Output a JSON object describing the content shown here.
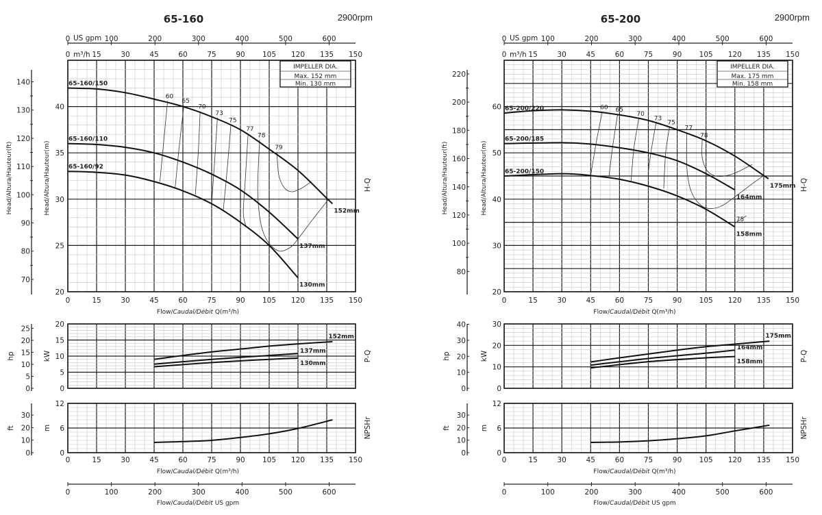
{
  "chart_data": [
    {
      "type": "line",
      "title": "65-160",
      "speed": "2900rpm",
      "impeller_box": {
        "title": "IMPELLER DIA.",
        "max": "Max.  152 mm",
        "min": "Min.   130 mm"
      },
      "top_axes": {
        "gpm_unit": "US gpm",
        "q_unit": "m³/h",
        "gpm_ticks": [
          0,
          100,
          200,
          300,
          400,
          500,
          600
        ],
        "q_ticks": [
          0,
          15,
          30,
          45,
          60,
          75,
          90,
          105,
          120,
          135,
          150
        ]
      },
      "xlabel": {
        "a": "Flow/",
        "b": "Caudal/Débit",
        "c": " Q(m³/h)"
      },
      "xlim": [
        0,
        150
      ],
      "x_ticks": [
        0,
        15,
        30,
        45,
        60,
        75,
        90,
        105,
        120,
        135,
        150
      ],
      "hq": {
        "label": "H-Q",
        "ylabel_m": "Head/Altura/Hauteur(m)",
        "ylabel_ft": "Head/Altura/Hauteur(ft)",
        "ylim": [
          20,
          45
        ],
        "m_ticks": [
          20,
          25,
          30,
          35,
          40
        ],
        "ft_ticks": [
          70,
          80,
          90,
          100,
          110,
          120,
          130,
          140
        ],
        "series": [
          {
            "name": "65-160/150",
            "end_label": "152mm",
            "points": [
              [
                0,
                42
              ],
              [
                15,
                41.9
              ],
              [
                30,
                41.5
              ],
              [
                45,
                40.8
              ],
              [
                60,
                40
              ],
              [
                75,
                38.9
              ],
              [
                90,
                37.5
              ],
              [
                105,
                35.4
              ],
              [
                120,
                33.1
              ],
              [
                135,
                30.1
              ],
              [
                138,
                29.5
              ]
            ]
          },
          {
            "name": "65-160/110",
            "end_label": "137mm",
            "points": [
              [
                0,
                36
              ],
              [
                15,
                35.9
              ],
              [
                30,
                35.6
              ],
              [
                45,
                35
              ],
              [
                60,
                34
              ],
              [
                75,
                32.7
              ],
              [
                90,
                31
              ],
              [
                105,
                28.6
              ],
              [
                120,
                25.7
              ]
            ]
          },
          {
            "name": "65-160/92",
            "end_label": "130mm",
            "points": [
              [
                0,
                33
              ],
              [
                15,
                32.9
              ],
              [
                30,
                32.6
              ],
              [
                45,
                31.9
              ],
              [
                60,
                30.9
              ],
              [
                75,
                29.5
              ],
              [
                90,
                27.5
              ],
              [
                105,
                25
              ],
              [
                120,
                21.5
              ]
            ]
          }
        ],
        "efficiency": [
          {
            "label": "60",
            "points": [
              [
                52,
                40.6
              ],
              [
                50,
                36.2
              ],
              [
                48,
                31.9
              ]
            ]
          },
          {
            "label": "65",
            "points": [
              [
                60.5,
                40.1
              ],
              [
                58,
                35.5
              ],
              [
                56,
                31.3
              ]
            ]
          },
          {
            "label": "70",
            "points": [
              [
                69,
                39.5
              ],
              [
                68,
                35
              ],
              [
                66.5,
                30.5
              ]
            ]
          },
          {
            "label": "73",
            "points": [
              [
                78,
                38.8
              ],
              [
                76.5,
                34
              ],
              [
                75,
                29.5
              ]
            ]
          },
          {
            "label": "75",
            "points": [
              [
                85,
                38
              ],
              [
                83,
                33
              ],
              [
                81,
                28.7
              ]
            ]
          },
          {
            "label": "77",
            "points": [
              [
                94,
                37.1
              ],
              [
                92.5,
                32
              ],
              [
                91.5,
                28.5
              ],
              [
                93,
                27
              ]
            ]
          },
          {
            "label": "78",
            "points": [
              [
                100,
                36.4
              ],
              [
                99,
                31
              ],
              [
                100.5,
                27.5
              ],
              [
                104,
                25.5
              ],
              [
                110,
                24.4
              ],
              [
                116,
                24.8
              ],
              [
                120,
                25.7
              ],
              [
                128,
                27.9
              ],
              [
                136,
                30
              ]
            ]
          },
          {
            "label": "79",
            "points": [
              [
                109,
                35.1
              ],
              [
                110,
                32.6
              ],
              [
                113,
                31.2
              ],
              [
                117,
                30.8
              ],
              [
                122,
                31.2
              ],
              [
                127,
                31.9
              ]
            ]
          }
        ]
      },
      "pq": {
        "label": "P-Q",
        "ylabel_kw": "kW",
        "ylabel_hp": "hp",
        "ylim": [
          0,
          20
        ],
        "kw_ticks": [
          0,
          5,
          10,
          15,
          20
        ],
        "hp_ticks": [
          0,
          5,
          10,
          15,
          20,
          25
        ],
        "series": [
          {
            "end_label": "152mm",
            "points": [
              [
                45,
                9
              ],
              [
                60,
                10.2
              ],
              [
                75,
                11.3
              ],
              [
                90,
                12.2
              ],
              [
                105,
                13.1
              ],
              [
                120,
                13.8
              ],
              [
                138,
                14.5
              ]
            ]
          },
          {
            "end_label": "137mm",
            "points": [
              [
                45,
                7.5
              ],
              [
                75,
                9
              ],
              [
                105,
                10.2
              ],
              [
                120,
                10.8
              ]
            ]
          },
          {
            "end_label": "130mm",
            "points": [
              [
                45,
                6.7
              ],
              [
                75,
                8
              ],
              [
                105,
                9
              ],
              [
                120,
                9.4
              ]
            ]
          }
        ]
      },
      "npsh": {
        "label": "NPSHr",
        "ylabel_m": "m",
        "ylabel_ft": "ft",
        "ylim": [
          0,
          12
        ],
        "m_ticks": [
          0,
          6,
          12
        ],
        "ft_ticks": [
          0,
          10,
          20,
          30
        ],
        "points": [
          [
            45,
            2.5
          ],
          [
            60,
            2.7
          ],
          [
            75,
            3
          ],
          [
            90,
            3.7
          ],
          [
            105,
            4.6
          ],
          [
            120,
            5.9
          ],
          [
            138,
            8
          ]
        ]
      },
      "bottom_axis": {
        "ticks": [
          0,
          100,
          200,
          300,
          400,
          500,
          600
        ],
        "label_a": "Flow/",
        "label_b": "Caudal/Débit",
        "label_c": "   US gpm"
      }
    },
    {
      "type": "line",
      "title": "65-200",
      "speed": "2900rpm",
      "impeller_box": {
        "title": "IMPELLER DIA.",
        "max": "Max.  175 mm",
        "min": "Min.   158 mm"
      },
      "top_axes": {
        "gpm_unit": "US gpm",
        "q_unit": "m³/h",
        "gpm_ticks": [
          0,
          100,
          200,
          300,
          400,
          500,
          600
        ],
        "q_ticks": [
          0,
          15,
          30,
          45,
          60,
          75,
          90,
          105,
          120,
          135,
          150
        ]
      },
      "xlabel": {
        "a": "Flow/",
        "b": "Caudal/Débit",
        "c": " Q(m³/h)"
      },
      "xlim": [
        0,
        150
      ],
      "x_ticks": [
        0,
        15,
        30,
        45,
        60,
        75,
        90,
        105,
        120,
        135,
        150
      ],
      "hq": {
        "label": "H-Q",
        "ylabel_m": "Head/Altura/Hauteur(m)",
        "ylabel_ft": "Head/Altura/Hauteur(ft)",
        "ylim": [
          20,
          70
        ],
        "m_ticks": [
          20,
          30,
          40,
          50,
          60
        ],
        "ft_ticks": [
          80,
          100,
          120,
          140,
          160,
          180,
          200,
          220
        ],
        "series": [
          {
            "name": "65-200/220",
            "end_label": "175mm",
            "points": [
              [
                0,
                58.6
              ],
              [
                15,
                59.1
              ],
              [
                30,
                59.3
              ],
              [
                45,
                59
              ],
              [
                60,
                58.2
              ],
              [
                75,
                57
              ],
              [
                90,
                55
              ],
              [
                105,
                52.6
              ],
              [
                120,
                49.3
              ],
              [
                135,
                45.1
              ],
              [
                137.5,
                44.4
              ]
            ]
          },
          {
            "name": "65-200/185",
            "end_label": "164mm",
            "points": [
              [
                0,
                52
              ],
              [
                30,
                52.2
              ],
              [
                45,
                51.9
              ],
              [
                60,
                51.1
              ],
              [
                75,
                50
              ],
              [
                90,
                48.3
              ],
              [
                105,
                45.5
              ],
              [
                120,
                42
              ]
            ]
          },
          {
            "name": "65-200/150",
            "end_label": "158mm",
            "points": [
              [
                0,
                45
              ],
              [
                30,
                45.5
              ],
              [
                45,
                45.1
              ],
              [
                60,
                44.3
              ],
              [
                75,
                42.8
              ],
              [
                90,
                40.7
              ],
              [
                105,
                37.8
              ],
              [
                120,
                34
              ]
            ]
          }
        ],
        "efficiency": [
          {
            "label": "60",
            "points": [
              [
                51,
                58.8
              ],
              [
                48,
                52.5
              ],
              [
                45,
                45.1
              ]
            ]
          },
          {
            "label": "65",
            "points": [
              [
                59,
                58.3
              ],
              [
                56.5,
                51.5
              ],
              [
                54.5,
                44.9
              ]
            ]
          },
          {
            "label": "70",
            "points": [
              [
                70,
                57.4
              ],
              [
                67.5,
                51
              ],
              [
                66,
                44
              ]
            ]
          },
          {
            "label": "73",
            "points": [
              [
                79,
                56.5
              ],
              [
                76.5,
                50.5
              ],
              [
                75,
                46
              ]
            ]
          },
          {
            "label": "75",
            "points": [
              [
                86,
                55.6
              ],
              [
                84,
                50
              ],
              [
                83,
                42.3
              ]
            ]
          },
          {
            "label": "77",
            "points": [
              [
                95,
                54.4
              ],
              [
                95,
                47
              ],
              [
                97,
                42
              ],
              [
                101,
                39.2
              ],
              [
                106,
                38
              ],
              [
                113,
                38.5
              ],
              [
                120,
                40.5
              ],
              [
                128,
                43
              ],
              [
                135,
                45.1
              ]
            ]
          },
          {
            "label": "78",
            "points": [
              [
                103,
                52.8
              ],
              [
                103,
                49
              ],
              [
                105.5,
                46.2
              ],
              [
                110,
                45
              ],
              [
                116,
                45.1
              ],
              [
                122,
                46
              ],
              [
                129,
                47.5
              ]
            ]
          },
          {
            "label": "75",
            "points": [
              [
                120,
                34.8
              ],
              [
                126,
                36.4
              ]
            ]
          }
        ]
      },
      "pq": {
        "label": "P-Q",
        "ylabel_kw": "kW",
        "ylabel_hp": "hp",
        "ylim": [
          0,
          30
        ],
        "kw_ticks": [
          0,
          10,
          20,
          30
        ],
        "hp_ticks": [
          0,
          10,
          20,
          30,
          40
        ],
        "series": [
          {
            "end_label": "175mm",
            "points": [
              [
                45,
                12.3
              ],
              [
                60,
                14.2
              ],
              [
                75,
                16
              ],
              [
                90,
                17.8
              ],
              [
                105,
                19.4
              ],
              [
                120,
                20.6
              ],
              [
                138,
                22
              ]
            ]
          },
          {
            "end_label": "164mm",
            "points": [
              [
                45,
                10.8
              ],
              [
                75,
                13.9
              ],
              [
                105,
                16.4
              ],
              [
                120,
                17.8
              ]
            ]
          },
          {
            "end_label": "158mm",
            "points": [
              [
                45,
                9.5
              ],
              [
                75,
                12.4
              ],
              [
                105,
                14.2
              ],
              [
                120,
                14.8
              ]
            ]
          }
        ]
      },
      "npsh": {
        "label": "NPSHr",
        "ylabel_m": "m",
        "ylabel_ft": "ft",
        "ylim": [
          0,
          12
        ],
        "m_ticks": [
          0,
          6,
          12
        ],
        "ft_ticks": [
          0,
          10,
          20,
          30
        ],
        "points": [
          [
            45,
            2.5
          ],
          [
            60,
            2.6
          ],
          [
            75,
            2.9
          ],
          [
            90,
            3.4
          ],
          [
            105,
            4.1
          ],
          [
            120,
            5.3
          ],
          [
            138,
            6.7
          ]
        ]
      },
      "bottom_axis": {
        "ticks": [
          0,
          100,
          200,
          300,
          400,
          500,
          600
        ],
        "label_a": "Flow/",
        "label_b": "Caudal/Débit",
        "label_c": "   US gpm"
      }
    }
  ]
}
